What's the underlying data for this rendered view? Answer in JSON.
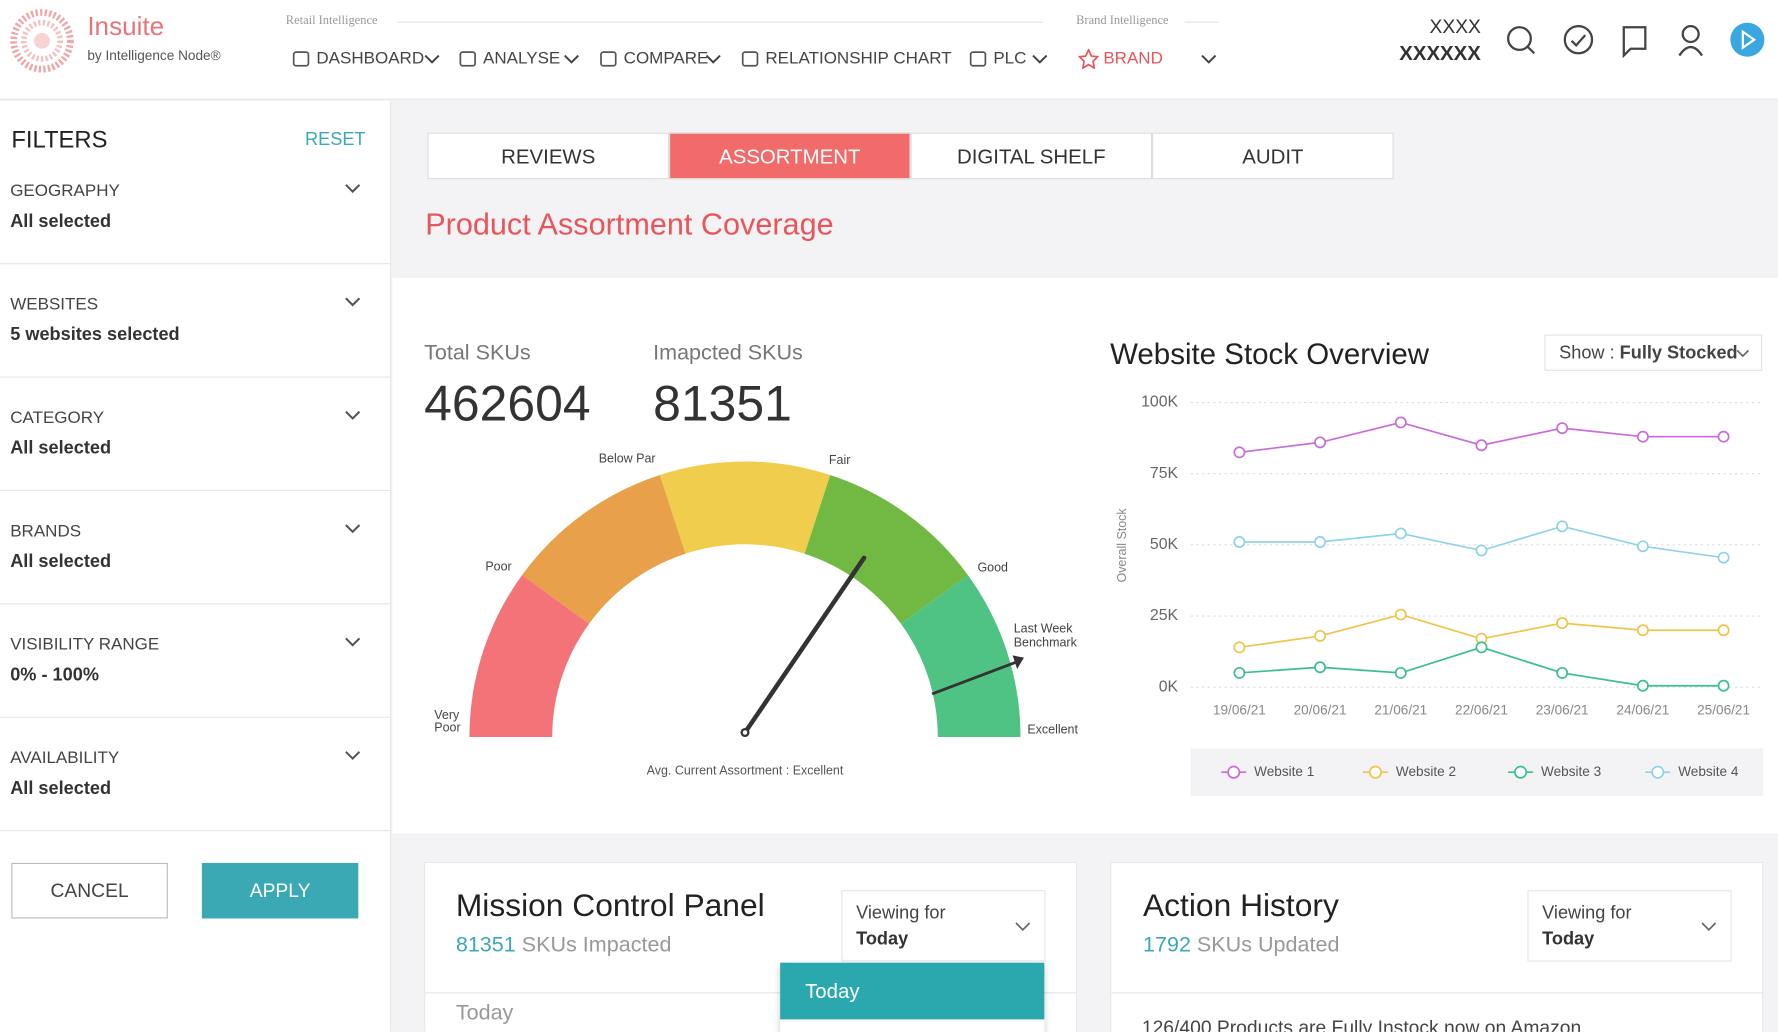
{
  "header": {
    "brand": "Insuite",
    "brand_sub": "by Intelligence Node®",
    "section_retail": "Retail Intelligence",
    "section_brand": "Brand Intelligence",
    "nav": [
      "DASHBOARD",
      "ANALYSE",
      "COMPARE",
      "RELATIONSHIP CHART",
      "PLC",
      "BRAND"
    ],
    "user_line1": "XXXX",
    "user_line2": "XXXXXX"
  },
  "filters": {
    "title": "FILTERS",
    "reset": "RESET",
    "items": [
      {
        "label": "GEOGRAPHY",
        "value": "All selected"
      },
      {
        "label": "WEBSITES",
        "value": "5 websites selected"
      },
      {
        "label": "CATEGORY",
        "value": "All selected"
      },
      {
        "label": "BRANDS",
        "value": "All selected"
      },
      {
        "label": "VISIBILITY RANGE",
        "value": "0% - 100%"
      },
      {
        "label": "AVAILABILITY",
        "value": "All selected"
      }
    ],
    "cancel": "CANCEL",
    "apply": "APPLY"
  },
  "tabs": [
    "REVIEWS",
    "ASSORTMENT",
    "DIGITAL SHELF",
    "AUDIT"
  ],
  "page_title": "Product Assortment Coverage",
  "stats": [
    {
      "label": "Total SKUs",
      "value": 462604
    },
    {
      "label": "Imapcted SKUs",
      "value": 81351
    }
  ],
  "gauge": {
    "labels": [
      "Very Poor",
      "Poor",
      "Below Par",
      "Fair",
      "Good",
      "Excellent"
    ],
    "benchmark": "Last Week Benchmark",
    "caption": "Avg. Current Assortment : Excellent"
  },
  "chart_data": {
    "type": "line",
    "title": "Website Stock Overview",
    "show_label": "Show :",
    "show_value": "Fully Stocked",
    "ylabel": "Overall Stock",
    "categories": [
      "19/06/21",
      "20/06/21",
      "21/06/21",
      "22/06/21",
      "23/06/21",
      "24/06/21",
      "25/06/21"
    ],
    "series": [
      {
        "name": "Website 1",
        "color": "#c86dd7",
        "values": [
          82500,
          86000,
          93000,
          85000,
          91000,
          88000,
          88000
        ]
      },
      {
        "name": "Website 2",
        "color": "#f0c44c",
        "values": [
          14000,
          18000,
          25500,
          17000,
          22500,
          20000,
          20000
        ]
      },
      {
        "name": "Website 3",
        "color": "#3cbf8f",
        "values": [
          5000,
          7000,
          5000,
          14000,
          5000,
          500,
          500
        ]
      },
      {
        "name": "Website 4",
        "color": "#8fd3e8",
        "values": [
          51000,
          51000,
          54000,
          48000,
          56500,
          49500,
          45500
        ]
      }
    ],
    "ylim": [
      0,
      100000
    ],
    "yticks": [
      {
        "value": 0,
        "label": "0K"
      },
      {
        "value": 25000,
        "label": "25K"
      },
      {
        "value": 50000,
        "label": "50K"
      },
      {
        "value": 75000,
        "label": "75K"
      },
      {
        "value": 100000,
        "label": "100K"
      }
    ],
    "grid": true,
    "legend": "bottom"
  },
  "mission": {
    "title": "Mission Control Panel",
    "count": 81351,
    "count_label": "SKUs Impacted",
    "viewing": "Viewing for",
    "period": "Today",
    "row": "Today",
    "dropdown": [
      "Today"
    ]
  },
  "action": {
    "title": "Action History",
    "count": 1792,
    "count_label": "SKUs Updated",
    "viewing": "Viewing for",
    "period": "Today",
    "row": "126/400 Products are Fully Instock now on Amazon"
  }
}
